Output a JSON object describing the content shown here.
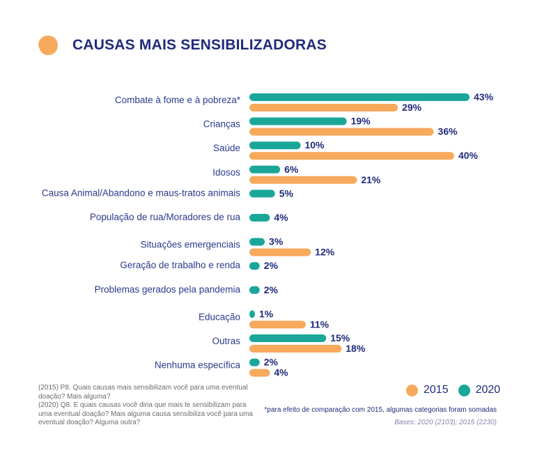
{
  "title": "CAUSAS MAIS SENSIBILIZADORAS",
  "colors": {
    "y2015": "#f7a95c",
    "y2020": "#1aa79a",
    "text": "#1f2b7b"
  },
  "legend": {
    "label_2015": "2015",
    "label_2020": "2020"
  },
  "footnotes": {
    "q2015": "(2015) P8. Quais causas mais sensibilizam você para uma eventual doação? Mais alguma?",
    "q2020": "(2020) Q8. E quais causas você diria que mais te sensibilizam para uma eventual doação? Mais alguma causa sensibiliza você para uma eventual doação? Alguma outra?",
    "comparison_note": "*para efeito de comparação com 2015, algumas categorias foram somadas",
    "bases": "Bases: 2020 (2103); 2015 (2230)"
  },
  "chart_data": {
    "type": "bar",
    "orientation": "horizontal",
    "title": "CAUSAS MAIS SENSIBILIZADORAS",
    "categories": [
      "Combate à fome e à pobreza*",
      "Crianças",
      "Saúde",
      "Idosos",
      "Causa Animal/Abandono e maus-tratos animais",
      "População de rua/Moradores de rua",
      "Situações emergenciais",
      "Geração de trabalho e renda",
      "Problemas gerados pela pandemia",
      "Educação",
      "Outras",
      "Nenhuma específica"
    ],
    "series": [
      {
        "name": "2020",
        "color": "#1aa79a",
        "values": [
          43,
          19,
          10,
          6,
          5,
          4,
          3,
          2,
          2,
          1,
          15,
          2
        ]
      },
      {
        "name": "2015",
        "color": "#f7a95c",
        "values": [
          29,
          36,
          40,
          21,
          null,
          null,
          12,
          null,
          null,
          11,
          18,
          4
        ]
      }
    ],
    "value_suffix": "%",
    "xlim": [
      0,
      43
    ],
    "grid": false,
    "legend_position": "bottom-right"
  }
}
